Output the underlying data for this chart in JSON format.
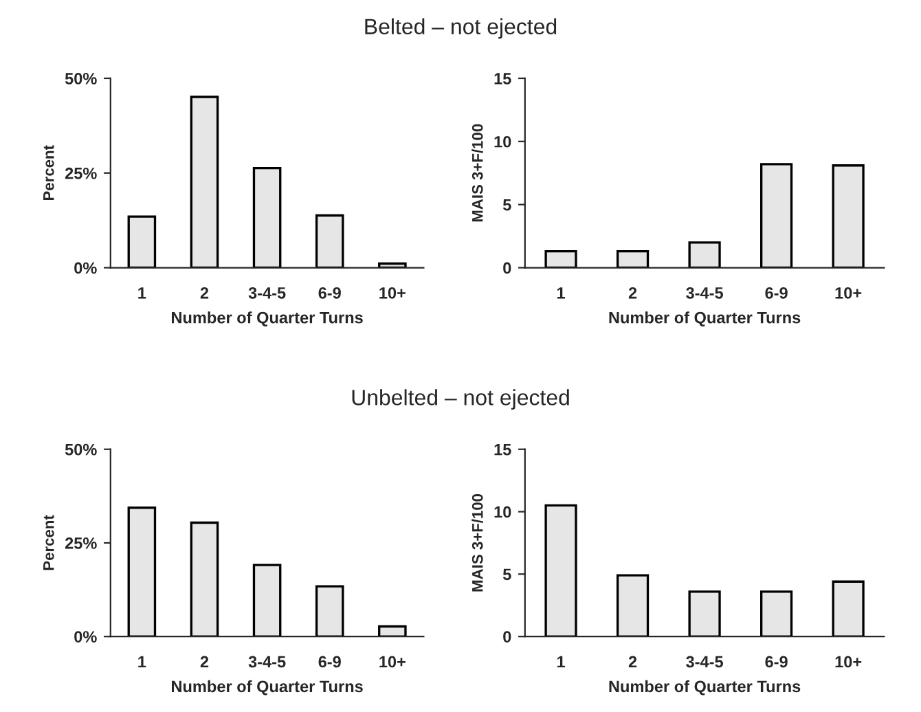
{
  "chart_data": [
    {
      "type": "bar",
      "title": "Belted – not ejected",
      "categories": [
        "1",
        "2",
        "3-4-5",
        "6-9",
        "10+"
      ],
      "values": [
        13.5,
        45.1,
        26.3,
        13.8,
        1.1
      ],
      "color": "#e6e6e6",
      "xlabel": "Number of Quarter Turns",
      "ylabel": "Percent",
      "ylim": [
        0,
        50
      ],
      "yticks": [
        {
          "value": 0,
          "label": "0%"
        },
        {
          "value": 25,
          "label": "25%"
        },
        {
          "value": 50,
          "label": "50%"
        }
      ],
      "grid": false
    },
    {
      "type": "bar",
      "categories": [
        "1",
        "2",
        "3-4-5",
        "6-9",
        "10+"
      ],
      "values": [
        1.3,
        1.3,
        2.0,
        8.2,
        8.1
      ],
      "color": "#e6e6e6",
      "xlabel": "Number of Quarter Turns",
      "ylabel": "MAIS 3+F/100",
      "ylim": [
        0,
        15
      ],
      "yticks": [
        0,
        5,
        10,
        15
      ],
      "grid": false
    },
    {
      "type": "bar",
      "title": "Unbelted – not ejected",
      "categories": [
        "1",
        "2",
        "3-4-5",
        "6-9",
        "10+"
      ],
      "values": [
        34.4,
        30.4,
        19.1,
        13.4,
        2.7
      ],
      "color": "#e6e6e6",
      "xlabel": "Number of Quarter Turns",
      "ylabel": "Percent",
      "ylim": [
        0,
        50
      ],
      "yticks": [
        {
          "value": 0,
          "label": "0%"
        },
        {
          "value": 25,
          "label": "25%"
        },
        {
          "value": 50,
          "label": "50%"
        }
      ],
      "grid": false
    },
    {
      "type": "bar",
      "categories": [
        "1",
        "2",
        "3-4-5",
        "6-9",
        "10+"
      ],
      "values": [
        10.5,
        4.9,
        3.6,
        3.6,
        4.4
      ],
      "color": "#e6e6e6",
      "xlabel": "Number of Quarter Turns",
      "ylabel": "MAIS 3+F/100",
      "ylim": [
        0,
        15
      ],
      "yticks": [
        0,
        5,
        10,
        15
      ],
      "grid": false
    }
  ]
}
